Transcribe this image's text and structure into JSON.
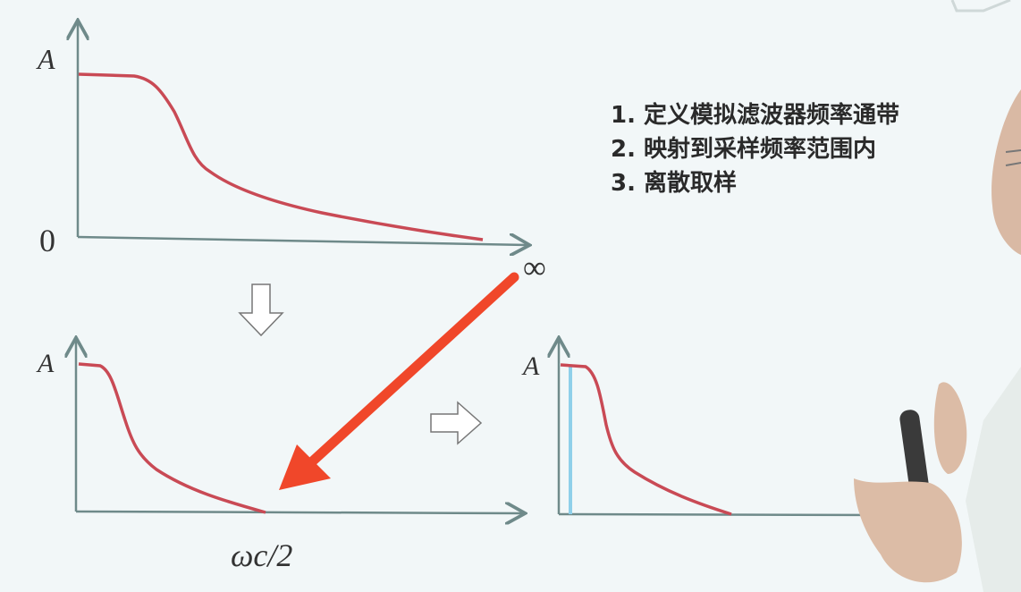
{
  "slide": {
    "steps": [
      "1. 定义模拟滤波器频率通带",
      "2. 映射到采样频率范围内",
      "3. 离散取样"
    ],
    "plot_top": {
      "y_label": "A",
      "origin_label": "0",
      "x_end_label": "∞"
    },
    "plot_bottom_left": {
      "y_label": "A",
      "x_label": "ωc/2"
    },
    "plot_bottom_right": {
      "y_label": "A"
    }
  },
  "colors": {
    "curve": "#c94a55",
    "axis": "#6f8a8a",
    "annotation_arrow": "#f0472a",
    "sample_line": "#8fd0ea",
    "background": "#f2f7f8"
  },
  "icons": [
    "hollow-down-arrow-icon",
    "hollow-right-arrow-icon",
    "red-annotation-arrow-icon"
  ]
}
